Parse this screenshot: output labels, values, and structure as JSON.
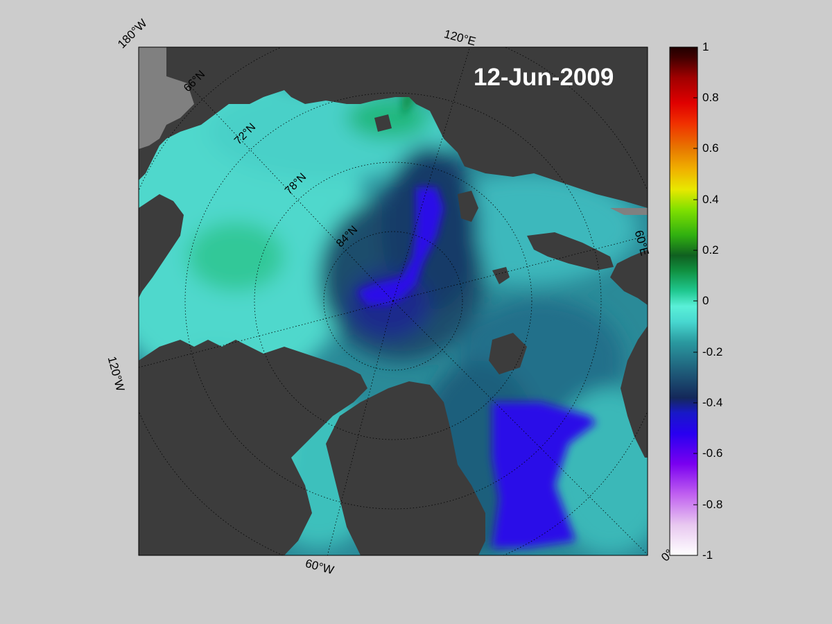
{
  "map": {
    "date_label": "12-Jun-2009",
    "projection": "polar stereographic, north pole",
    "longitude_labels": [
      "180°W",
      "120°E",
      "60°E",
      "0°",
      "60°W",
      "120°W"
    ],
    "latitude_labels": [
      "66°N",
      "72°N",
      "78°N",
      "84°N"
    ],
    "colors": {
      "land": "#3c3c3c",
      "masked_land": "#808080",
      "background": "#cccccc",
      "graticule": "#000000"
    }
  },
  "colorbar": {
    "min": -1,
    "max": 1,
    "ticks": [
      "1",
      "0.8",
      "0.6",
      "0.4",
      "0.2",
      "0",
      "-0.2",
      "-0.4",
      "-0.6",
      "-0.8",
      "-1"
    ],
    "colormap": [
      "#ffffff",
      "#e8c8f0",
      "#c060f0",
      "#7a00f0",
      "#2800f0",
      "#1818c8",
      "#14285a",
      "#1e5a78",
      "#2a9aa0",
      "#48d8d0",
      "#5af0d8",
      "#20c890",
      "#109040",
      "#106020",
      "#30b010",
      "#80e000",
      "#e8e800",
      "#f0b000",
      "#e87800",
      "#f03000",
      "#e00000",
      "#a00000",
      "#600000",
      "#200000"
    ]
  }
}
